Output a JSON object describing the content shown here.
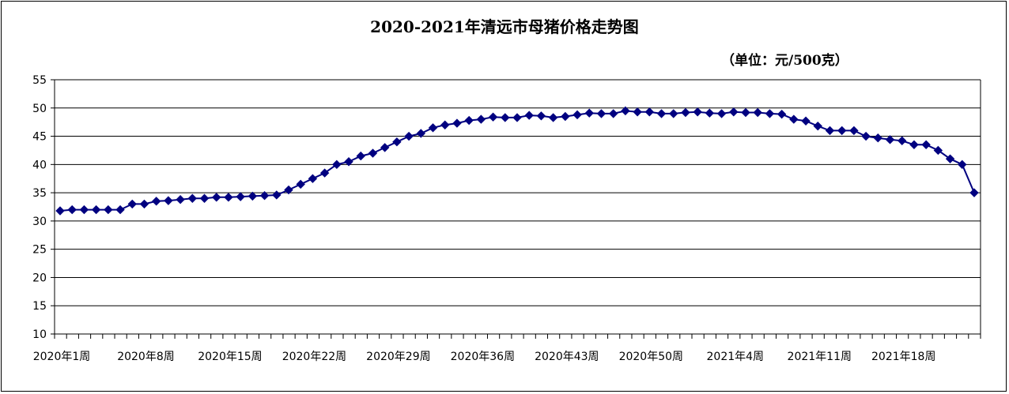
{
  "chart_data": {
    "type": "line",
    "title": "2020-2021年清远市母猪价格走势图",
    "unit_note": "（单位：元/500克）",
    "ylim": [
      10,
      55
    ],
    "y_ticks": [
      10,
      15,
      20,
      25,
      30,
      35,
      40,
      45,
      50,
      55
    ],
    "grid": "horizontal",
    "legend": "none",
    "x_tick_labels": [
      {
        "index": 0,
        "label": "2020年1周"
      },
      {
        "index": 7,
        "label": "2020年8周"
      },
      {
        "index": 14,
        "label": "2020年15周"
      },
      {
        "index": 21,
        "label": "2020年22周"
      },
      {
        "index": 28,
        "label": "2020年29周"
      },
      {
        "index": 35,
        "label": "2020年36周"
      },
      {
        "index": 42,
        "label": "2020年43周"
      },
      {
        "index": 49,
        "label": "2020年50周"
      },
      {
        "index": 56,
        "label": "2021年4周"
      },
      {
        "index": 63,
        "label": "2021年11周"
      },
      {
        "index": 70,
        "label": "2021年18周"
      }
    ],
    "series": [
      {
        "color": "#000080",
        "values": [
          31.8,
          32.0,
          32.0,
          32.0,
          32.0,
          32.0,
          33.0,
          33.0,
          33.5,
          33.6,
          33.8,
          34.0,
          34.0,
          34.2,
          34.2,
          34.3,
          34.4,
          34.5,
          34.6,
          35.5,
          36.5,
          37.5,
          38.5,
          40.0,
          40.5,
          41.5,
          42.0,
          43.0,
          44.0,
          45.0,
          45.5,
          46.5,
          47.0,
          47.3,
          47.8,
          48.0,
          48.4,
          48.3,
          48.3,
          48.7,
          48.6,
          48.3,
          48.5,
          48.8,
          49.1,
          49.0,
          49.0,
          49.5,
          49.3,
          49.3,
          49.0,
          49.0,
          49.2,
          49.3,
          49.1,
          49.0,
          49.3,
          49.2,
          49.2,
          49.0,
          48.9,
          48.0,
          47.7,
          46.8,
          46.0,
          46.0,
          46.0,
          45.0,
          44.7,
          44.4,
          44.2,
          43.5,
          43.5,
          42.5,
          41.0,
          40.0,
          35.0
        ]
      }
    ]
  }
}
